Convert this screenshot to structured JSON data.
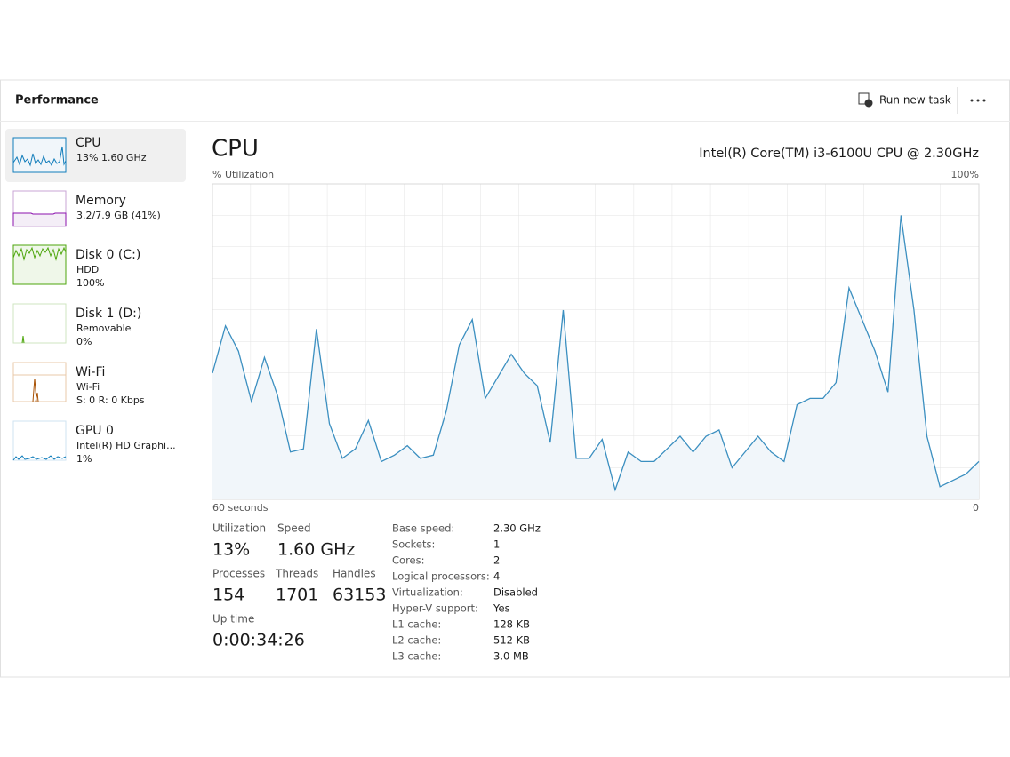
{
  "header": {
    "title": "Performance",
    "run_new_task": "Run new task"
  },
  "sidebar": [
    {
      "name": "CPU",
      "lines": [
        "13% 1.60 GHz"
      ]
    },
    {
      "name": "Memory",
      "lines": [
        "3.2/7.9 GB (41%)"
      ]
    },
    {
      "name": "Disk 0 (C:)",
      "lines": [
        "HDD",
        "100%"
      ]
    },
    {
      "name": "Disk 1 (D:)",
      "lines": [
        "Removable",
        "0%"
      ]
    },
    {
      "name": "Wi-Fi",
      "lines": [
        "Wi-Fi",
        "S: 0 R: 0 Kbps"
      ]
    },
    {
      "name": "GPU 0",
      "lines": [
        "Intel(R) HD Graphi...",
        "1%"
      ]
    }
  ],
  "main": {
    "title": "CPU",
    "model": "Intel(R) Core(TM) i3-6100U CPU @ 2.30GHz"
  },
  "chart_data": {
    "type": "area",
    "y_label": "% Utilization",
    "color": "#3b8fc0",
    "fill": "#f1f6fa",
    "ylim": [
      0,
      100
    ],
    "yticks": [
      {
        "value": 100,
        "label": "100%"
      }
    ],
    "xlim": [
      60,
      0
    ],
    "xticks": [
      {
        "value": 60,
        "label": "60 seconds"
      },
      0
    ],
    "values": [
      40,
      55,
      47,
      31,
      45,
      33,
      15,
      16,
      54,
      24,
      13,
      16,
      25,
      12,
      14,
      17,
      13,
      14,
      28,
      49,
      57,
      32,
      39,
      46,
      40,
      36,
      18,
      60,
      13,
      13,
      19,
      3,
      15,
      12,
      12,
      16,
      20,
      15,
      20,
      22,
      10,
      15,
      20,
      15,
      12,
      30,
      32,
      32,
      37,
      67,
      57,
      47,
      34,
      90,
      60,
      20,
      4,
      6,
      8,
      12
    ]
  },
  "stats": [
    {
      "label": "Utilization",
      "value": "13%"
    },
    {
      "label": "Speed",
      "value": "1.60 GHz"
    },
    {
      "label": "Processes",
      "value": "154"
    },
    {
      "label": "Threads",
      "value": "1701"
    },
    {
      "label": "Handles",
      "value": "63153"
    },
    {
      "label": "Up time",
      "value": "0:00:34:26"
    }
  ],
  "details": [
    [
      "Base speed:",
      "2.30 GHz"
    ],
    [
      "Sockets:",
      "1"
    ],
    [
      "Cores:",
      "2"
    ],
    [
      "Logical processors:",
      "4"
    ],
    [
      "Virtualization:",
      "Disabled"
    ],
    [
      "Hyper-V support:",
      "Yes"
    ],
    [
      "L1 cache:",
      "128 KB"
    ],
    [
      "L2 cache:",
      "512 KB"
    ],
    [
      "L3 cache:",
      "3.0 MB"
    ]
  ]
}
